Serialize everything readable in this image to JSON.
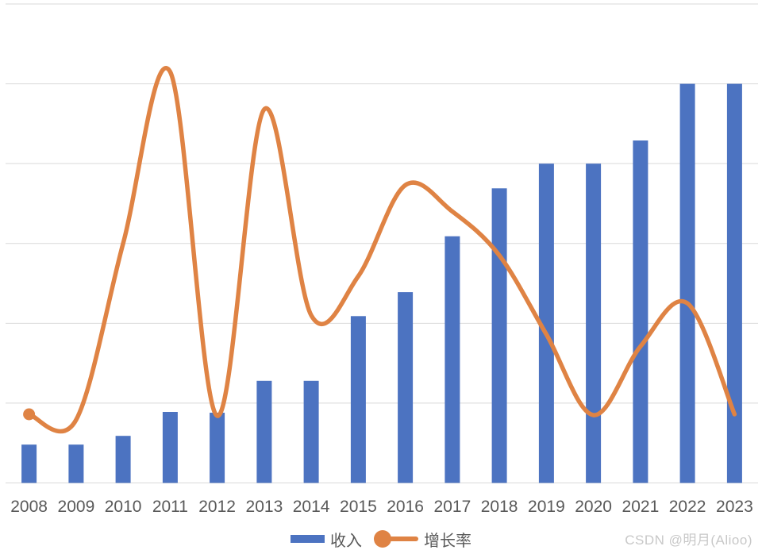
{
  "watermark": {
    "text": "CSDN @明月(Alioo)",
    "color": "#c8c8c8"
  },
  "chart_data": {
    "type": "combo",
    "title": "",
    "xlabel": "",
    "ylabel": "",
    "categories": [
      "2008",
      "2009",
      "2010",
      "2011",
      "2012",
      "2013",
      "2014",
      "2015",
      "2016",
      "2017",
      "2018",
      "2019",
      "2020",
      "2021",
      "2022",
      "2023"
    ],
    "series": [
      {
        "name": "收入",
        "type": "bar",
        "color": "#4c73c1",
        "values": [
          0.48,
          0.48,
          0.59,
          0.89,
          0.88,
          1.28,
          1.28,
          2.09,
          2.39,
          3.09,
          3.69,
          4.0,
          4.0,
          4.29,
          5.0,
          5.0
        ]
      },
      {
        "name": "增长率",
        "type": "line",
        "smooth": true,
        "first_point_marker": true,
        "color": "#df8344",
        "values": [
          0.86,
          0.79,
          3.0,
          5.15,
          0.84,
          4.68,
          2.1,
          2.59,
          3.73,
          3.4,
          2.85,
          1.86,
          0.85,
          1.71,
          2.25,
          0.86
        ]
      }
    ],
    "ylim": [
      0,
      6
    ],
    "y_gridline_step": 1,
    "y_axis_labels_visible": false,
    "grid": "horizontal",
    "gridline_color": "#d9d9d9",
    "tick_label_color": "#595959",
    "legend_position": "bottom-center",
    "note": "y axis is unlabeled; values are in gridline units (1 unit = one horizontal gridline interval)"
  }
}
